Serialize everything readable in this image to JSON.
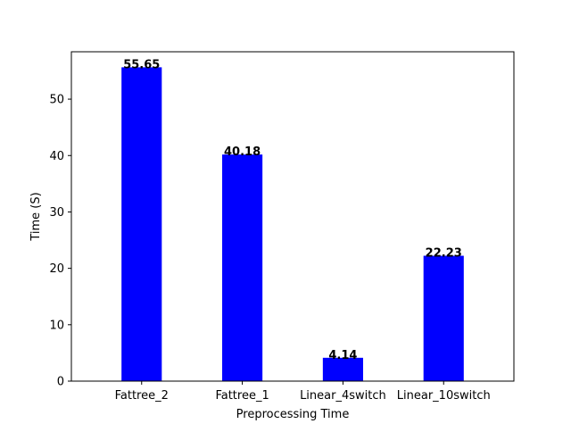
{
  "chart_data": {
    "type": "bar",
    "title": "",
    "xlabel": "Preprocessing Time",
    "ylabel": "Time (S)",
    "categories": [
      "Fattree_2",
      "Fattree_1",
      "Linear_4switch",
      "Linear_10switch"
    ],
    "values": [
      55.65,
      40.18,
      4.14,
      22.23
    ],
    "data_labels": [
      "55.65",
      "40.18",
      "4.14",
      "22.23"
    ],
    "ylim": [
      0,
      58.4
    ],
    "yticks": [
      0,
      10,
      20,
      30,
      40,
      50
    ],
    "ytick_labels": [
      "0",
      "10",
      "20",
      "30",
      "40",
      "50"
    ],
    "bar_color": "#0000ff",
    "grid": false,
    "legend": "none"
  }
}
